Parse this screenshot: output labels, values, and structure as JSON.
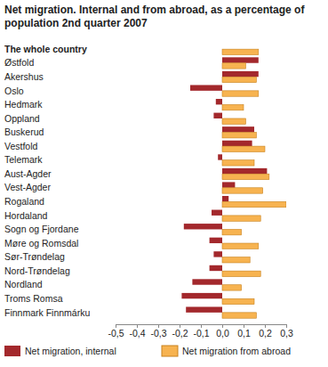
{
  "chart_data": {
    "type": "bar",
    "orientation": "horizontal",
    "title": "Net migration. Internal and from abroad, as a percentage of population 2nd quarter 2007",
    "categories": [
      "The whole country",
      "Østfold",
      "Akershus",
      "Oslo",
      "Hedmark",
      "Oppland",
      "Buskerud",
      "Vestfold",
      "Telemark",
      "Aust-Agder",
      "Vest-Agder",
      "Rogaland",
      "Hordaland",
      "Sogn og Fjordane",
      "Møre og Romsdal",
      "Sør-Trøndelag",
      "Nord-Trøndelag",
      "Nordland",
      "Troms Romsa",
      "Finnmark Finnmárku"
    ],
    "series": [
      {
        "name": "Net migration, internal",
        "color": "#a3282c",
        "values": [
          0,
          0.17,
          0.17,
          -0.15,
          -0.03,
          -0.04,
          0.15,
          0.14,
          -0.02,
          0.21,
          0.06,
          0.03,
          -0.05,
          -0.18,
          -0.06,
          -0.04,
          -0.06,
          -0.14,
          -0.19,
          -0.17
        ]
      },
      {
        "name": "Net migration from abroad",
        "color": "#f7b350",
        "values": [
          0.17,
          0.11,
          0.16,
          0.17,
          0.1,
          0.11,
          0.16,
          0.2,
          0.15,
          0.22,
          0.19,
          0.3,
          0.18,
          0.09,
          0.17,
          0.13,
          0.18,
          0.09,
          0.15,
          0.16
        ]
      }
    ],
    "xlim": [
      -0.5,
      0.3
    ],
    "xticks": [
      {
        "value": -0.5,
        "label": "-0,5"
      },
      {
        "value": -0.4,
        "label": "-0,4"
      },
      {
        "value": -0.3,
        "label": "-0,3"
      },
      {
        "value": -0.2,
        "label": "-0,2"
      },
      {
        "value": -0.1,
        "label": "-0,1"
      },
      {
        "value": 0,
        "label": "0,0"
      },
      {
        "value": 0.1,
        "label": "0,1"
      },
      {
        "value": 0.2,
        "label": "0,2"
      },
      {
        "value": 0.3,
        "label": "0,3"
      }
    ],
    "grid": false,
    "legend": "bottom"
  }
}
